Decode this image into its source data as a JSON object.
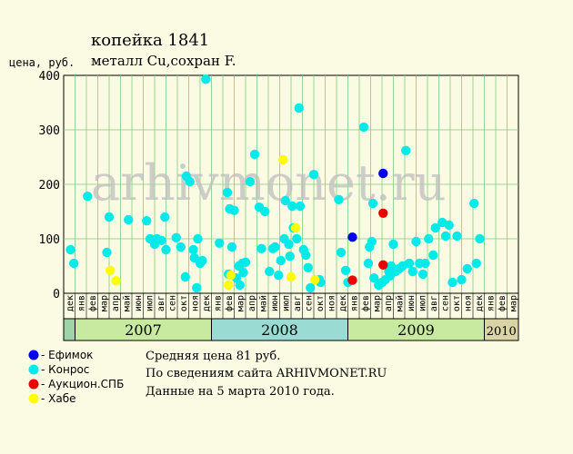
{
  "chart_data": {
    "type": "scatter",
    "title": "копейка 1841",
    "subtitle": "металл Cu,сохран F.",
    "ylabel": "цена, руб.",
    "ylim": [
      0,
      400
    ],
    "yticks": [
      0,
      100,
      200,
      300,
      400
    ],
    "grid": true,
    "legend_position": "bottom-left",
    "months": [
      "дек",
      "янв",
      "фев",
      "мар",
      "апр",
      "май",
      "июн",
      "июл",
      "авг",
      "сен",
      "окт",
      "ноя",
      "дек",
      "янв",
      "фев",
      "мар",
      "апр",
      "май",
      "июн",
      "июл",
      "авг",
      "сен",
      "окт",
      "ноя",
      "дек",
      "янв",
      "фев",
      "мар",
      "апр",
      "май",
      "июн",
      "июл",
      "авг",
      "сен",
      "окт",
      "ноя",
      "дек",
      "янв",
      "фев",
      "мар"
    ],
    "month_start": "2006-12",
    "years": [
      {
        "label": "",
        "from": 0,
        "to": 1,
        "color": "#9ed4a8"
      },
      {
        "label": "2007",
        "from": 1,
        "to": 13,
        "color": "#c8eaa0"
      },
      {
        "label": "2008",
        "from": 13,
        "to": 25,
        "color": "#9adcd4"
      },
      {
        "label": "2009",
        "from": 25,
        "to": 37,
        "color": "#c8eaa0"
      },
      {
        "label": "2010",
        "from": 37,
        "to": 40,
        "color": "#d9d3a5"
      }
    ],
    "series": [
      {
        "name": "Ефимок",
        "color": "#0000ee",
        "points": [
          [
            24.9,
            103
          ],
          [
            27.6,
            220
          ]
        ]
      },
      {
        "name": "Конрос",
        "color": "#00eaea",
        "points": [
          [
            0.1,
            80
          ],
          [
            0.4,
            55
          ],
          [
            1.6,
            178
          ],
          [
            3.3,
            75
          ],
          [
            3.5,
            140
          ],
          [
            5.2,
            135
          ],
          [
            6.8,
            133
          ],
          [
            7.1,
            100
          ],
          [
            7.5,
            90
          ],
          [
            7.7,
            100
          ],
          [
            8.1,
            97
          ],
          [
            8.4,
            140
          ],
          [
            8.5,
            80
          ],
          [
            9.4,
            102
          ],
          [
            9.8,
            85
          ],
          [
            10.2,
            30
          ],
          [
            10.3,
            215
          ],
          [
            10.6,
            205
          ],
          [
            10.9,
            80
          ],
          [
            11.0,
            65
          ],
          [
            11.2,
            10
          ],
          [
            11.3,
            100
          ],
          [
            11.5,
            55
          ],
          [
            11.7,
            60
          ],
          [
            12.0,
            393
          ],
          [
            13.2,
            92
          ],
          [
            13.9,
            185
          ],
          [
            14.0,
            35
          ],
          [
            14.1,
            155
          ],
          [
            14.3,
            85
          ],
          [
            14.5,
            152
          ],
          [
            14.7,
            28
          ],
          [
            14.9,
            50
          ],
          [
            15.0,
            15
          ],
          [
            15.2,
            55
          ],
          [
            15.3,
            38
          ],
          [
            15.5,
            57
          ],
          [
            15.9,
            205
          ],
          [
            16.3,
            255
          ],
          [
            16.7,
            158
          ],
          [
            16.9,
            82
          ],
          [
            17.2,
            150
          ],
          [
            17.6,
            40
          ],
          [
            17.9,
            82
          ],
          [
            18.1,
            85
          ],
          [
            18.4,
            33
          ],
          [
            18.6,
            60
          ],
          [
            18.9,
            100
          ],
          [
            19.0,
            170
          ],
          [
            19.3,
            90
          ],
          [
            19.4,
            68
          ],
          [
            19.6,
            160
          ],
          [
            19.7,
            120
          ],
          [
            20.0,
            100
          ],
          [
            20.2,
            340
          ],
          [
            20.3,
            160
          ],
          [
            20.6,
            80
          ],
          [
            20.8,
            70
          ],
          [
            21.0,
            47
          ],
          [
            21.2,
            10
          ],
          [
            21.5,
            218
          ],
          [
            22.0,
            25
          ],
          [
            22.1,
            20
          ],
          [
            23.7,
            172
          ],
          [
            23.9,
            75
          ],
          [
            24.3,
            42
          ],
          [
            24.5,
            20
          ],
          [
            25.9,
            305
          ],
          [
            26.3,
            55
          ],
          [
            26.4,
            85
          ],
          [
            26.6,
            95
          ],
          [
            26.7,
            165
          ],
          [
            26.8,
            28
          ],
          [
            27.2,
            15
          ],
          [
            27.5,
            20
          ],
          [
            27.8,
            25
          ],
          [
            28.1,
            40
          ],
          [
            28.2,
            32
          ],
          [
            28.3,
            50
          ],
          [
            28.5,
            90
          ],
          [
            28.7,
            40
          ],
          [
            29.0,
            45
          ],
          [
            29.3,
            50
          ],
          [
            29.6,
            262
          ],
          [
            29.9,
            55
          ],
          [
            30.2,
            40
          ],
          [
            30.5,
            95
          ],
          [
            30.8,
            55
          ],
          [
            31.1,
            35
          ],
          [
            31.3,
            55
          ],
          [
            31.6,
            100
          ],
          [
            32.0,
            70
          ],
          [
            32.2,
            120
          ],
          [
            32.8,
            130
          ],
          [
            33.1,
            105
          ],
          [
            33.4,
            125
          ],
          [
            33.7,
            20
          ],
          [
            34.1,
            105
          ],
          [
            34.5,
            25
          ],
          [
            35.0,
            45
          ],
          [
            35.6,
            165
          ],
          [
            35.8,
            55
          ],
          [
            36.1,
            100
          ]
        ]
      },
      {
        "name": "Аукцион.СПБ",
        "color": "#ee0000",
        "points": [
          [
            24.9,
            24
          ],
          [
            27.6,
            147
          ],
          [
            27.6,
            52
          ]
        ]
      },
      {
        "name": "Хабе",
        "color": "#ffff00",
        "points": [
          [
            3.6,
            42
          ],
          [
            4.1,
            23
          ],
          [
            14.0,
            15
          ],
          [
            14.2,
            33
          ],
          [
            18.8,
            245
          ],
          [
            19.5,
            30
          ],
          [
            19.9,
            120
          ],
          [
            21.6,
            25
          ]
        ]
      }
    ]
  },
  "notes": {
    "average": "Средняя цена 81 руб.",
    "source": "По сведениям сайта ARHIVMONET.RU",
    "date": "Данные на 5 марта 2010 года."
  },
  "watermark": "arhivmonet.ru"
}
